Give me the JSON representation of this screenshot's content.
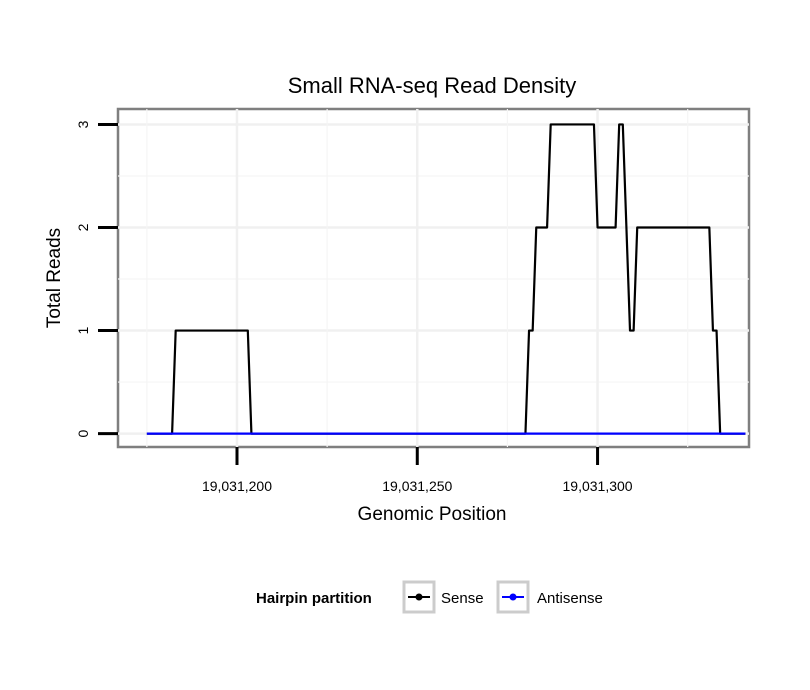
{
  "chart_data": {
    "type": "line",
    "title": "Small RNA-seq Read Density",
    "xlabel": "Genomic Position",
    "ylabel": "Total Reads",
    "xlim": [
      19031167,
      19031342
    ],
    "ylim": [
      -0.13,
      3.15
    ],
    "x_ticks": [
      19031200,
      19031250,
      19031300
    ],
    "x_tick_labels": [
      "19,031,200",
      "19,031,250",
      "19,031,300"
    ],
    "y_ticks": [
      0,
      1,
      2,
      3
    ],
    "y_tick_labels": [
      "0",
      "1",
      "2",
      "3"
    ],
    "grid": true,
    "legend": {
      "title": "Hairpin partition",
      "placement": "bottom"
    },
    "series": [
      {
        "name": "Sense",
        "color": "#000000",
        "x": [
          19031175,
          19031182,
          19031183,
          19031203,
          19031204,
          19031280,
          19031281,
          19031282,
          19031283,
          19031286,
          19031287,
          19031299,
          19031300,
          19031305,
          19031306,
          19031307,
          19031308,
          19031309,
          19031310,
          19031311,
          19031312,
          19031331,
          19031332,
          19031333,
          19031334,
          19031341
        ],
        "y": [
          0,
          0,
          1,
          1,
          0,
          0,
          1,
          1,
          2,
          2,
          3,
          3,
          2,
          2,
          3,
          3,
          2,
          1,
          1,
          2,
          2,
          2,
          1,
          1,
          0,
          0
        ]
      },
      {
        "name": "Antisense",
        "color": "#0000ff",
        "x": [
          19031175,
          19031341
        ],
        "y": [
          0,
          0
        ]
      }
    ]
  }
}
